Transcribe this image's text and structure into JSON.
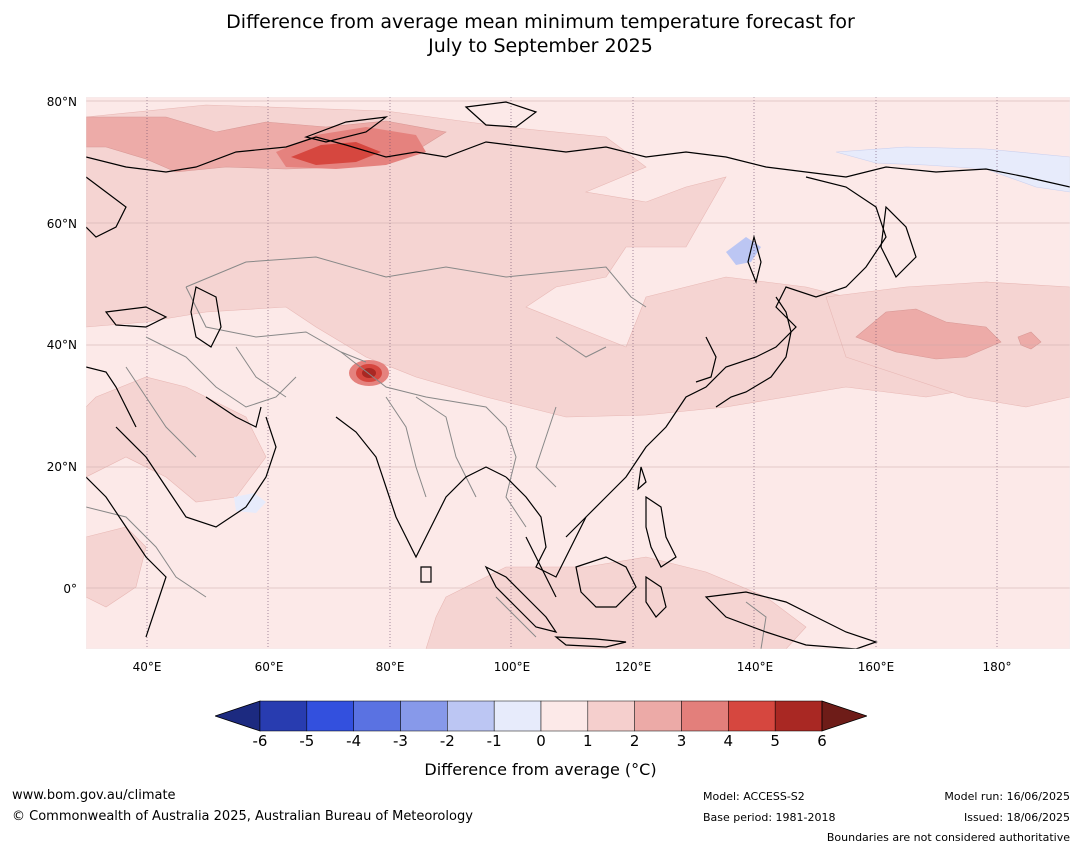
{
  "title": {
    "line1": "Difference from average mean minimum temperature forecast for",
    "line2": "July to September 2025"
  },
  "axes": {
    "lat_labels": [
      "80°N",
      "60°N",
      "40°N",
      "20°N",
      "0°"
    ],
    "lon_labels": [
      "40°E",
      "60°E",
      "80°E",
      "100°E",
      "120°E",
      "140°E",
      "160°E",
      "180°"
    ]
  },
  "legend": {
    "ticks": [
      "-6",
      "-5",
      "-4",
      "-3",
      "-2",
      "-1",
      "0",
      "1",
      "2",
      "3",
      "4",
      "5",
      "6"
    ],
    "colors": [
      "#1c2a80",
      "#283cb0",
      "#3350de",
      "#5a72e2",
      "#8799ea",
      "#bcc6f3",
      "#e7ebfb",
      "#fce9e8",
      "#f5cfcd",
      "#ecaaa7",
      "#e37f7b",
      "#d6473f",
      "#a92823",
      "#6e1c18"
    ],
    "title": "Difference from average (°C)"
  },
  "map_colors": {
    "ocean_base": "#fce9e8",
    "level_1_2": "#f5d4d2",
    "level_2_3": "#edaba8",
    "level_3_4": "#e5827e",
    "level_4_5": "#d6473f",
    "level_5_6": "#a92823",
    "negative": "#e7ebfb",
    "negative_2": "#bcc6f3",
    "coast": "#000000",
    "border": "#888888"
  },
  "footer": {
    "website": "www.bom.gov.au/climate",
    "copyright": "© Commonwealth of Australia 2025, Australian Bureau of Meteorology",
    "model": "Model: ACCESS-S2",
    "base_period": "Base period: 1981-2018",
    "model_run": "Model run: 16/06/2025",
    "issued": "Issued: 18/06/2025",
    "disclaimer": "Boundaries are not considered authoritative"
  }
}
